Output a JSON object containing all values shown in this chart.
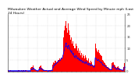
{
  "title": "Milwaukee Weather Actual and Average Wind Speed by Minute mph (Last 24 Hours)",
  "bar_color": "#ff0000",
  "line_color": "#0000ff",
  "background_color": "#ffffff",
  "plot_background": "#ffffff",
  "ylim": [
    0,
    25
  ],
  "title_fontsize": 3.2,
  "n_points": 144,
  "grid_color": "#bbbbbb",
  "actual": [
    0.5,
    0.3,
    0.2,
    0.4,
    0.3,
    0.2,
    0.1,
    0.3,
    0.2,
    0.1,
    0.2,
    0.3,
    0.4,
    0.5,
    0.3,
    0.2,
    0.4,
    0.3,
    0.5,
    0.4,
    0.3,
    0.4,
    0.5,
    0.3,
    0.2,
    0.3,
    0.2,
    0.1,
    1.5,
    2.0,
    1.8,
    2.5,
    1.2,
    0.8,
    0.5,
    0.3,
    0.2,
    0.3,
    1.8,
    2.2,
    2.5,
    1.5,
    1.2,
    0.8,
    0.5,
    0.3,
    0.4,
    0.5,
    0.3,
    0.2,
    0.4,
    0.3,
    0.5,
    0.4,
    0.6,
    3.0,
    4.0,
    3.5,
    4.5,
    3.8,
    4.2,
    5.0,
    4.8,
    5.5,
    5.0,
    6.0,
    5.5,
    7.0,
    15.0,
    18.0,
    20.0,
    22.0,
    19.0,
    17.0,
    21.0,
    18.0,
    16.0,
    14.0,
    15.0,
    12.0,
    13.0,
    11.0,
    10.0,
    12.0,
    11.0,
    9.0,
    10.0,
    8.0,
    9.0,
    7.0,
    8.0,
    6.0,
    7.5,
    6.5,
    5.5,
    7.0,
    6.0,
    5.0,
    4.5,
    5.5,
    4.0,
    3.5,
    4.5,
    3.8,
    3.0,
    2.5,
    3.0,
    12.0,
    10.0,
    9.0,
    8.5,
    9.5,
    8.0,
    7.5,
    7.0,
    6.5,
    5.0,
    4.5,
    4.0,
    3.5,
    3.0,
    2.5,
    2.0,
    1.8,
    1.5,
    1.2,
    1.0,
    0.8,
    3.5,
    4.0,
    3.0,
    2.5,
    2.0,
    1.5,
    1.8,
    2.2,
    1.5,
    1.2,
    1.0,
    0.8,
    0.6,
    0.5,
    2.0,
    3.5
  ],
  "avg": [
    0.3,
    0.3,
    0.3,
    0.3,
    0.3,
    0.3,
    0.3,
    0.3,
    0.3,
    0.3,
    0.3,
    0.3,
    0.3,
    0.3,
    0.3,
    0.3,
    0.3,
    0.3,
    0.3,
    0.3,
    0.3,
    0.3,
    0.3,
    0.3,
    0.3,
    0.3,
    0.3,
    0.3,
    0.8,
    1.0,
    1.2,
    1.5,
    1.0,
    0.7,
    0.5,
    0.4,
    0.3,
    0.4,
    1.0,
    1.2,
    1.5,
    1.0,
    0.8,
    0.6,
    0.5,
    0.4,
    0.4,
    0.4,
    0.3,
    0.3,
    0.4,
    0.3,
    0.4,
    0.4,
    0.5,
    1.8,
    2.5,
    2.8,
    3.2,
    3.5,
    3.8,
    4.2,
    4.5,
    4.8,
    5.0,
    5.5,
    5.8,
    6.2,
    8.0,
    9.5,
    11.0,
    12.5,
    11.0,
    10.0,
    11.5,
    10.5,
    9.5,
    8.5,
    9.0,
    7.5,
    8.0,
    6.5,
    6.0,
    7.0,
    6.5,
    5.5,
    6.0,
    5.0,
    5.5,
    4.5,
    5.0,
    4.0,
    4.5,
    4.0,
    3.5,
    4.2,
    3.8,
    3.2,
    3.0,
    3.5,
    2.8,
    2.5,
    3.0,
    2.8,
    2.2,
    2.0,
    2.2,
    6.0,
    5.5,
    5.0,
    4.8,
    5.2,
    4.5,
    4.2,
    4.0,
    3.8,
    3.0,
    2.8,
    2.5,
    2.2,
    2.0,
    1.8,
    1.5,
    1.2,
    1.0,
    0.9,
    0.8,
    0.7,
    2.0,
    2.5,
    1.8,
    1.5,
    1.2,
    1.0,
    1.2,
    1.4,
    1.0,
    0.9,
    0.8,
    0.7,
    0.5,
    0.4,
    1.2,
    2.0
  ]
}
